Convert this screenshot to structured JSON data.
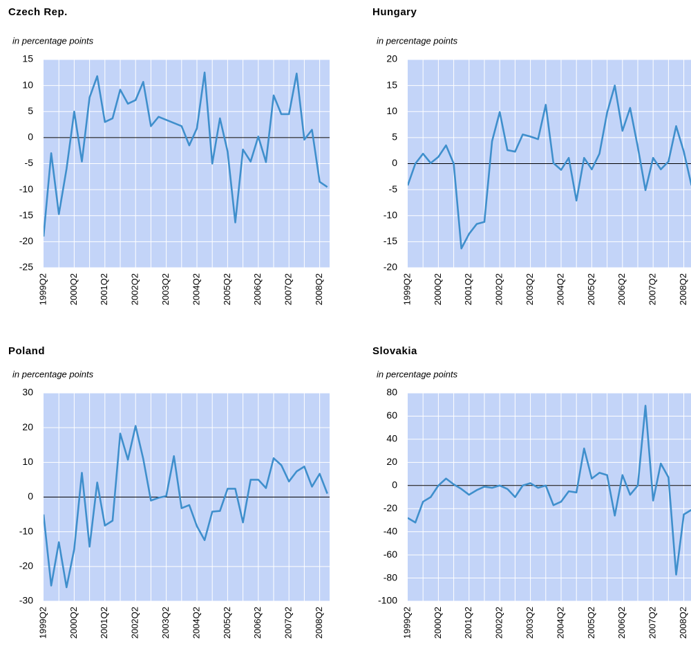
{
  "chart_data": [
    {
      "type": "line",
      "title": "Czech Rep.",
      "y_label": "in percentage points",
      "categories": [
        "1999Q2",
        null,
        null,
        null,
        "2000Q2",
        null,
        null,
        null,
        "2001Q2",
        null,
        null,
        null,
        "2002Q2",
        null,
        null,
        null,
        "2003Q2",
        null,
        null,
        null,
        "2004Q2",
        null,
        null,
        null,
        "2005Q2",
        null,
        null,
        null,
        "2006Q2",
        null,
        null,
        null,
        "2007Q2",
        null,
        null,
        null,
        "2008Q2",
        null
      ],
      "color": "#3f8fcc",
      "values": [
        -19,
        -3,
        -14.7,
        -6,
        5,
        -4.6,
        7.7,
        11.8,
        3,
        3.7,
        9.2,
        6.5,
        7.2,
        10.7,
        2.2,
        4,
        3.4,
        2.8,
        2.2,
        -1.5,
        1.8,
        12.5,
        -5,
        3.7,
        -2.7,
        -16.3,
        -2.3,
        -4.6,
        0.2,
        -4.7,
        8.1,
        4.5,
        4.5,
        12.3,
        -0.4,
        1.5,
        -8.5,
        -9.5
      ],
      "ylim": [
        -25,
        15
      ],
      "yticks": [
        -25,
        -20,
        -15,
        -10,
        -5,
        0,
        5,
        10,
        15
      ],
      "grid": true
    },
    {
      "type": "line",
      "title": "Hungary",
      "y_label": "in percentage points",
      "categories": [
        "1999Q2",
        null,
        null,
        null,
        "2000Q2",
        null,
        null,
        null,
        "2001Q2",
        null,
        null,
        null,
        "2002Q2",
        null,
        null,
        null,
        "2003Q2",
        null,
        null,
        null,
        "2004Q2",
        null,
        null,
        null,
        "2005Q2",
        null,
        null,
        null,
        "2006Q2",
        null,
        null,
        null,
        "2007Q2",
        null,
        null,
        null,
        "2008Q2",
        null
      ],
      "color": "#3f8fcc",
      "values": [
        -4.2,
        0,
        1.9,
        0.1,
        1.3,
        3.5,
        0,
        -16.3,
        -13.5,
        -11.6,
        -11.2,
        4.3,
        9.9,
        2.6,
        2.3,
        5.6,
        5.2,
        4.7,
        11.3,
        0.1,
        -1.2,
        1.1,
        -7.1,
        1.1,
        -1.1,
        1.9,
        9.8,
        15,
        6.3,
        10.7,
        3.2,
        -5.1,
        1.1,
        -1.1,
        0.4,
        7.2,
        2.3,
        -4.2
      ],
      "ylim": [
        -20,
        20
      ],
      "yticks": [
        -20,
        -15,
        -10,
        -5,
        0,
        5,
        10,
        15,
        20
      ],
      "grid": true
    },
    {
      "type": "line",
      "title": "Poland",
      "y_label": "in percentage points",
      "categories": [
        "1999Q2",
        null,
        null,
        null,
        "2000Q2",
        null,
        null,
        null,
        "2001Q2",
        null,
        null,
        null,
        "2002Q2",
        null,
        null,
        null,
        "2003Q2",
        null,
        null,
        null,
        "2004Q2",
        null,
        null,
        null,
        "2005Q2",
        null,
        null,
        null,
        "2006Q2",
        null,
        null,
        null,
        "2007Q2",
        null,
        null,
        null,
        "2008Q2",
        null
      ],
      "color": "#3f8fcc",
      "values": [
        -5,
        -25.5,
        -13,
        -26,
        -15,
        7,
        -14.3,
        4.2,
        -8.2,
        -6.8,
        18.3,
        10.8,
        20.5,
        11,
        -1,
        -0.2,
        0.3,
        11.8,
        -3.2,
        -2.3,
        -8.4,
        -12.4,
        -4.2,
        -4,
        2.4,
        2.4,
        -7.3,
        5,
        5,
        2.6,
        11.2,
        9.2,
        4.5,
        7.4,
        8.8,
        3,
        6.7,
        1
      ],
      "ylim": [
        -30,
        30
      ],
      "yticks": [
        -30,
        -20,
        -10,
        0,
        10,
        20,
        30
      ],
      "grid": true
    },
    {
      "type": "line",
      "title": "Slovakia",
      "y_label": "in percentage points",
      "categories": [
        "1999Q2",
        null,
        null,
        null,
        "2000Q2",
        null,
        null,
        null,
        "2001Q2",
        null,
        null,
        null,
        "2002Q2",
        null,
        null,
        null,
        "2003Q2",
        null,
        null,
        null,
        "2004Q2",
        null,
        null,
        null,
        "2005Q2",
        null,
        null,
        null,
        "2006Q2",
        null,
        null,
        null,
        "2007Q2",
        null,
        null,
        null,
        "2008Q2",
        null
      ],
      "color": "#3f8fcc",
      "values": [
        -28,
        -32,
        -14,
        -10,
        0,
        6,
        1,
        -3,
        -8,
        -4,
        -1,
        -2,
        0,
        -3,
        -10,
        0,
        2,
        -2,
        0,
        -17,
        -14,
        -5,
        -6,
        32,
        6,
        11,
        9,
        -26,
        9,
        -8,
        0,
        69,
        -13,
        19,
        7,
        -77,
        -25,
        -21
      ],
      "ylim": [
        -100,
        80
      ],
      "yticks": [
        -100,
        -80,
        -60,
        -40,
        -20,
        0,
        20,
        40,
        60,
        80
      ],
      "grid": true
    }
  ]
}
